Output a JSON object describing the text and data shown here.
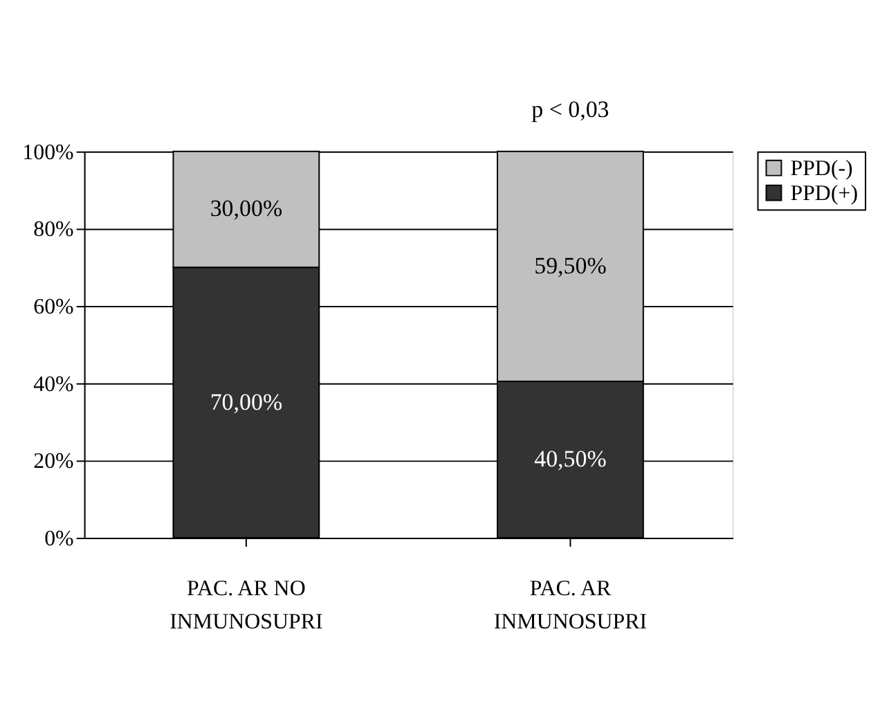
{
  "chart_data": {
    "type": "bar",
    "stacked": true,
    "categories": [
      "PAC. AR NO INMUNOSUPRI",
      "PAC. AR INMUNOSUPRI"
    ],
    "series": [
      {
        "name": "PPD(+)",
        "color": "#333333",
        "values": [
          70.0,
          40.5
        ],
        "value_labels": [
          "70,00%",
          "40,50%"
        ]
      },
      {
        "name": "PPD(-)",
        "color": "#c0c0c0",
        "values": [
          30.0,
          59.5
        ],
        "value_labels": [
          "30,00%",
          "59,50%"
        ]
      }
    ],
    "ylim": [
      0,
      100
    ],
    "yticks": [
      {
        "value": 0,
        "label": "0%"
      },
      {
        "value": 20,
        "label": "20%"
      },
      {
        "value": 40,
        "label": "40%"
      },
      {
        "value": 60,
        "label": "60%"
      },
      {
        "value": 80,
        "label": "80%"
      },
      {
        "value": 100,
        "label": "100%"
      }
    ],
    "grid": "y",
    "legend": "top right",
    "annotations": [
      "p < 0,03"
    ]
  }
}
